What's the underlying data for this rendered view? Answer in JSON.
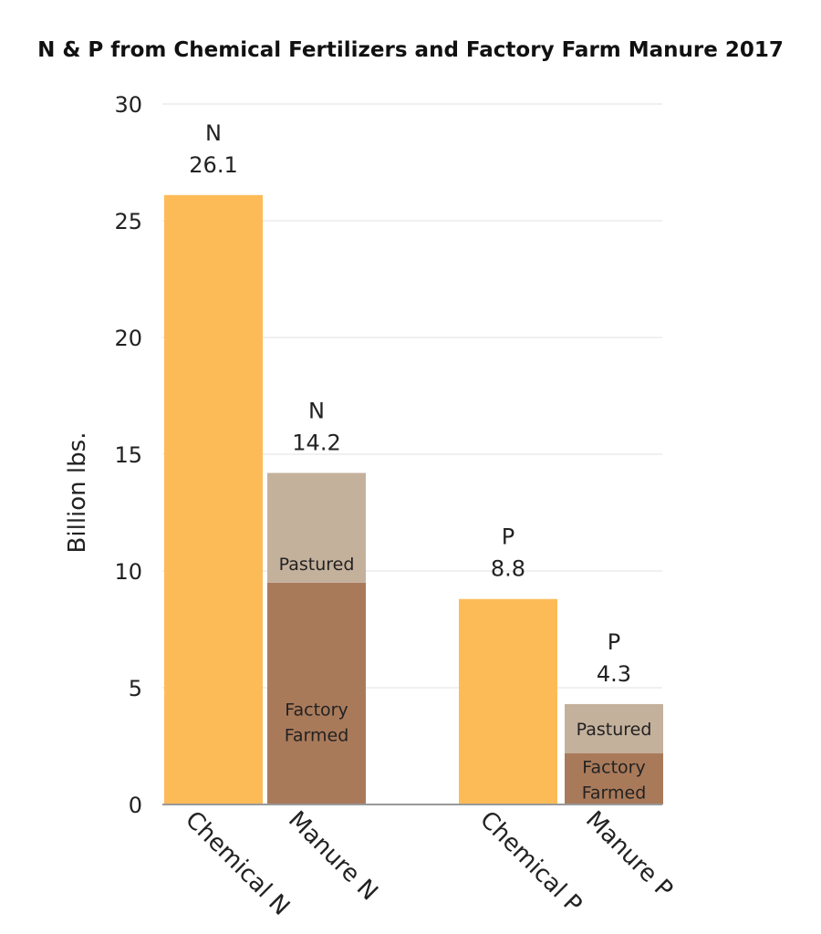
{
  "chart_data": {
    "type": "bar",
    "stacked": true,
    "title": "N & P from Chemical Fertilizers and Factory Farm Manure 2017",
    "ylabel": "Billion lbs.",
    "xlabel": "",
    "ylim": [
      0,
      30
    ],
    "yticks": [
      0,
      5,
      10,
      15,
      20,
      25,
      30
    ],
    "grid": true,
    "categories": [
      "Chemical N",
      "Manure N",
      "Chemical P",
      "Manure P"
    ],
    "totals": [
      {
        "element": "N",
        "value": "26.1"
      },
      {
        "element": "N",
        "value": "14.2"
      },
      {
        "element": "P",
        "value": "8.8"
      },
      {
        "element": "P",
        "value": "4.3"
      }
    ],
    "series": [
      {
        "name": "Chemical",
        "values": [
          26.1,
          0,
          8.8,
          0
        ],
        "color": "#FDBB58"
      },
      {
        "name": "Factory Farmed",
        "values": [
          0,
          9.5,
          0,
          2.2
        ],
        "color": "#A97A5A"
      },
      {
        "name": "Pastured",
        "values": [
          0,
          4.7,
          0,
          2.1
        ],
        "color": "#C4B19C"
      }
    ],
    "segment_labels": {
      "Factory Farmed": [
        "Factory",
        "Farmed"
      ],
      "Pastured": [
        "Pastured"
      ]
    },
    "colors": {
      "gridline": "#EBEBEB",
      "axis": "#999999",
      "text": "#222222"
    }
  }
}
